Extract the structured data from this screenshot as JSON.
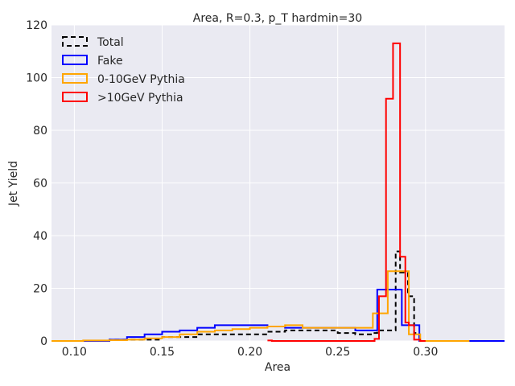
{
  "chart_data": {
    "type": "histogram-step",
    "title": "Area, R=0.3, p_T hardmin=30",
    "xlabel": "Area",
    "ylabel": "Jet Yield",
    "xlim": [
      0.087,
      0.345
    ],
    "ylim": [
      0,
      120
    ],
    "xticks": [
      "0.10",
      "0.15",
      "0.20",
      "0.25",
      "0.30"
    ],
    "xtick_values": [
      0.1,
      0.15,
      0.2,
      0.25,
      0.3
    ],
    "yticks": [
      "0",
      "20",
      "40",
      "60",
      "80",
      "100",
      "120"
    ],
    "ytick_values": [
      0,
      20,
      40,
      60,
      80,
      100,
      120
    ],
    "grid": true,
    "background": "#eaeaf2",
    "legend_position": "upper-left",
    "series": [
      {
        "name": "Total",
        "color": "#000000",
        "style": "dashed",
        "x": [
          0.087,
          0.12,
          0.15,
          0.17,
          0.21,
          0.22,
          0.25,
          0.26,
          0.27,
          0.2725,
          0.283,
          0.2855,
          0.29,
          0.2935,
          0.2965,
          0.345
        ],
        "y": [
          0,
          0.5,
          1.5,
          2.5,
          3.5,
          4,
          3,
          2.5,
          3,
          4,
          34,
          26,
          17,
          3,
          0,
          0
        ]
      },
      {
        "name": "Fake",
        "color": "#0000ff",
        "style": "solid",
        "x": [
          0.087,
          0.12,
          0.13,
          0.14,
          0.15,
          0.16,
          0.17,
          0.18,
          0.2,
          0.21,
          0.22,
          0.25,
          0.26,
          0.27,
          0.2725,
          0.2835,
          0.2865,
          0.2935,
          0.2965,
          0.345
        ],
        "y": [
          0,
          0.5,
          1.5,
          2.5,
          3.5,
          4,
          5,
          6,
          6,
          5.5,
          5,
          5,
          4,
          4,
          19.5,
          19.5,
          6,
          6,
          0,
          0
        ]
      },
      {
        "name": "0-10GeV Pythia",
        "color": "#ffa500",
        "style": "solid",
        "x": [
          0.087,
          0.105,
          0.12,
          0.13,
          0.14,
          0.15,
          0.16,
          0.17,
          0.18,
          0.19,
          0.2,
          0.21,
          0.22,
          0.23,
          0.25,
          0.26,
          0.265,
          0.27,
          0.2755,
          0.2785,
          0.2875,
          0.2905,
          0.294,
          0.297,
          0.325
        ],
        "y": [
          0,
          0.2,
          0.3,
          0.5,
          1,
          1.5,
          2.5,
          3.5,
          4,
          4.5,
          5,
          5.5,
          6,
          5,
          5,
          5,
          5,
          10.5,
          10.5,
          26.5,
          26.5,
          2.5,
          2.5,
          0,
          0
        ]
      },
      {
        "name": ">10GeV Pythia",
        "color": "#ff0000",
        "style": "solid",
        "x": [
          0.21,
          0.2125,
          0.26,
          0.271,
          0.2735,
          0.2755,
          0.2775,
          0.2815,
          0.2835,
          0.2855,
          0.2885,
          0.2905,
          0.2935,
          0.2955,
          0.297,
          0.3
        ],
        "y": [
          0.2,
          0,
          0,
          0.8,
          17,
          17,
          92,
          113,
          113,
          32,
          7,
          6,
          0.5,
          0.5,
          0,
          0
        ]
      }
    ]
  }
}
